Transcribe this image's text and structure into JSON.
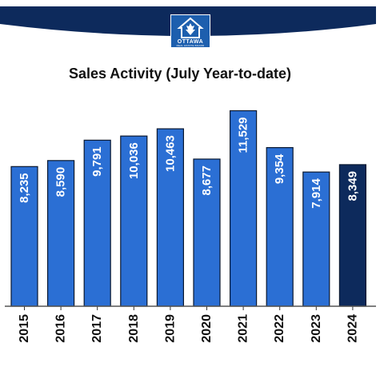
{
  "logo": {
    "name": "OTTAWA",
    "subtitle": "REAL ESTATE BOARD"
  },
  "colors": {
    "banner": "#0d2a5c",
    "bar": "#2b6fd4",
    "bar_highlight": "#0d2a5c",
    "bar_border": "#0a1830",
    "label": "#ffffff",
    "tick_label": "#111111"
  },
  "chart_data": {
    "type": "bar",
    "title": "Sales Activity (July Year-to-date)",
    "categories": [
      "2015",
      "2016",
      "2017",
      "2018",
      "2019",
      "2020",
      "2021",
      "2022",
      "2023",
      "2024"
    ],
    "values": [
      8235,
      8590,
      9791,
      10036,
      10463,
      8677,
      11529,
      9354,
      7914,
      8349
    ],
    "value_labels": [
      "8,235",
      "8,590",
      "9,791",
      "10,036",
      "10,463",
      "8,677",
      "11,529",
      "9,354",
      "7,914",
      "8,349"
    ],
    "highlight_category": "2024",
    "ylim": [
      0,
      12400
    ],
    "grid": false,
    "legend": "none",
    "xlabel": "",
    "ylabel": ""
  }
}
